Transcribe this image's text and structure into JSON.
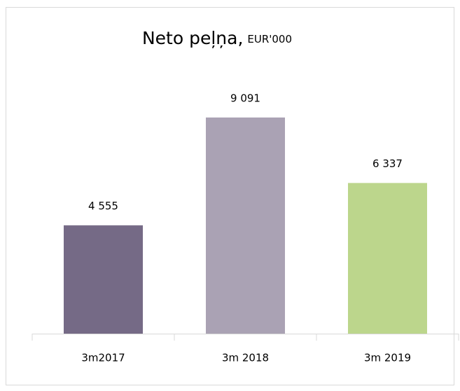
{
  "chart_data": {
    "type": "bar",
    "title": "Neto peļņa,",
    "unit": "EUR'000",
    "categories": [
      "3m2017",
      "3m 2018",
      "3m 2019"
    ],
    "values": [
      4555,
      9091,
      6337
    ],
    "value_labels": [
      "4 555",
      "9 091",
      "6 337"
    ],
    "colors": [
      "#756a86",
      "#aaa2b4",
      "#bcd68c"
    ]
  }
}
